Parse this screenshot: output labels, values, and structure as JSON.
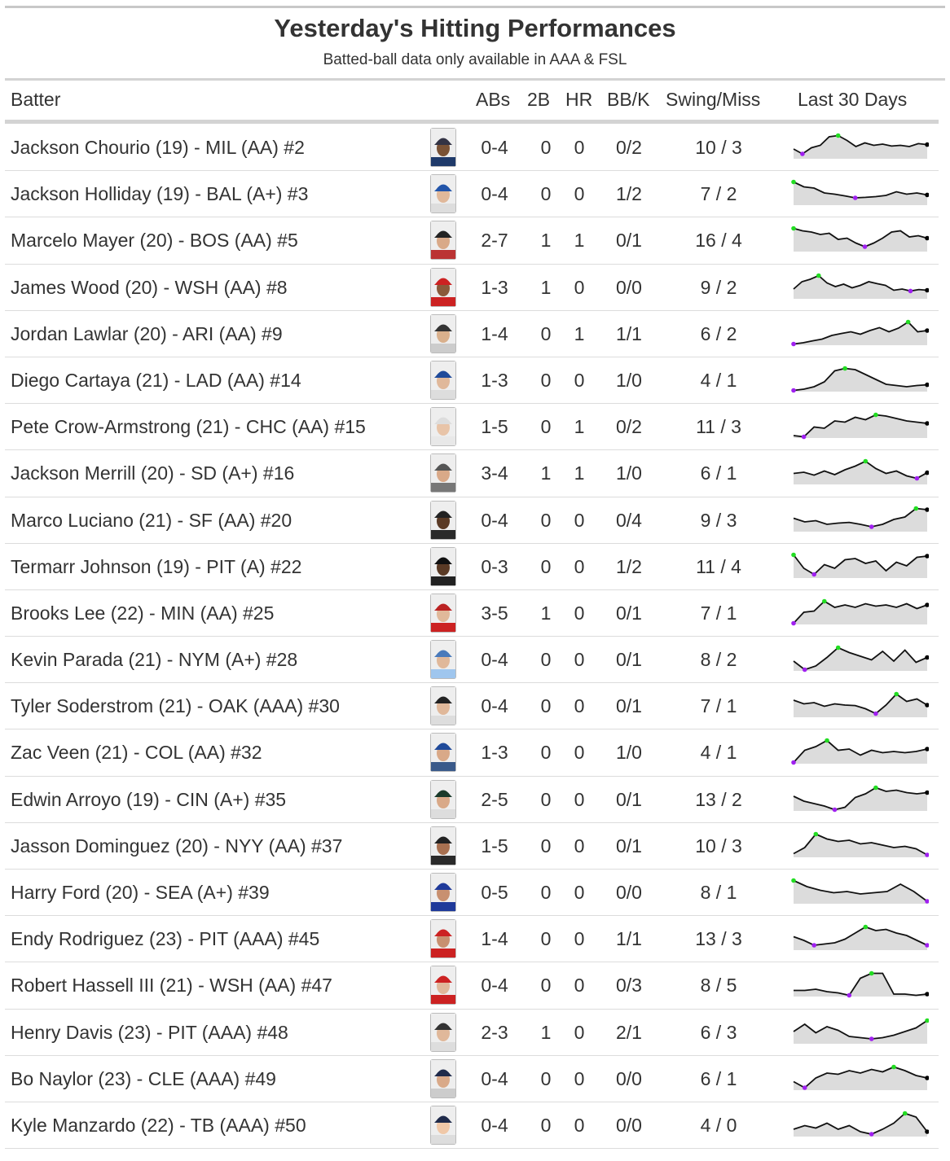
{
  "title": "Yesterday's Hitting Performances",
  "subtitle": "Batted-ball data only available in AAA & FSL",
  "columns": {
    "batter": "Batter",
    "abs": "ABs",
    "doubles": "2B",
    "hr": "HR",
    "bbk": "BB/K",
    "swing_miss": "Swing/Miss",
    "last30": "Last 30 Days"
  },
  "colors": {
    "high_point": "#22dd22",
    "low_point": "#a020f0",
    "last_point": "#000000",
    "area": "#dcdcdc",
    "line": "#111111"
  },
  "chart_data": {
    "type": "table",
    "rows": [
      {
        "batter": "Jackson Chourio (19) - MIL (AA) #2",
        "abs": "0-4",
        "doubles": "0",
        "hr": "0",
        "bbk": "0/2",
        "swing_miss": "10 / 3",
        "helmet": "#333344",
        "jersey": "#1f3a6a",
        "skin": "#7a5235",
        "spark": [
          0.4,
          0.2,
          0.45,
          0.55,
          0.9,
          0.95,
          0.75,
          0.5,
          0.65,
          0.55,
          0.6,
          0.52,
          0.55,
          0.5,
          0.62,
          0.58
        ]
      },
      {
        "batter": "Jackson Holliday (19) - BAL (A+) #3",
        "abs": "0-4",
        "doubles": "0",
        "hr": "0",
        "bbk": "1/2",
        "swing_miss": "7 / 2",
        "helmet": "#2255aa",
        "jersey": "#dddddd",
        "skin": "#e0b89a",
        "spark": [
          0.95,
          0.75,
          0.7,
          0.5,
          0.45,
          0.38,
          0.3,
          0.32,
          0.35,
          0.4,
          0.55,
          0.45,
          0.5,
          0.42
        ]
      },
      {
        "batter": "Marcelo Mayer (20) - BOS (AA) #5",
        "abs": "2-7",
        "doubles": "1",
        "hr": "1",
        "bbk": "0/1",
        "swing_miss": "16 / 4",
        "helmet": "#222222",
        "jersey": "#bb3333",
        "skin": "#d9a988",
        "spark": [
          0.95,
          0.85,
          0.8,
          0.7,
          0.75,
          0.5,
          0.55,
          0.35,
          0.2,
          0.35,
          0.55,
          0.8,
          0.85,
          0.6,
          0.65,
          0.55
        ]
      },
      {
        "batter": "James Wood (20) - WSH (AA) #8",
        "abs": "1-3",
        "doubles": "1",
        "hr": "0",
        "bbk": "0/0",
        "swing_miss": "9 / 2",
        "helmet": "#cc2222",
        "jersey": "#cc2222",
        "skin": "#8a5a3a",
        "spark": [
          0.4,
          0.7,
          0.8,
          0.95,
          0.65,
          0.5,
          0.6,
          0.45,
          0.55,
          0.7,
          0.62,
          0.55,
          0.35,
          0.4,
          0.32,
          0.38,
          0.35
        ]
      },
      {
        "batter": "Jordan Lawlar (20) - ARI (AA) #9",
        "abs": "1-4",
        "doubles": "0",
        "hr": "1",
        "bbk": "1/1",
        "swing_miss": "6 / 2",
        "helmet": "#333333",
        "jersey": "#cccccc",
        "skin": "#d9b08c",
        "spark": [
          0.05,
          0.1,
          0.18,
          0.25,
          0.4,
          0.48,
          0.55,
          0.45,
          0.6,
          0.72,
          0.55,
          0.7,
          0.95,
          0.55,
          0.6
        ]
      },
      {
        "batter": "Diego Cartaya (21) - LAD (AA) #14",
        "abs": "1-3",
        "doubles": "0",
        "hr": "0",
        "bbk": "1/0",
        "swing_miss": "4 / 1",
        "helmet": "#1f4a9a",
        "jersey": "#dddddd",
        "skin": "#e0b89a",
        "spark": [
          0.05,
          0.1,
          0.2,
          0.4,
          0.85,
          0.95,
          0.9,
          0.7,
          0.5,
          0.3,
          0.25,
          0.2,
          0.25,
          0.28
        ]
      },
      {
        "batter": "Pete Crow-Armstrong (21) - CHC (AA) #15",
        "abs": "1-5",
        "doubles": "0",
        "hr": "1",
        "bbk": "0/2",
        "swing_miss": "11 / 3",
        "helmet": "#dddddd",
        "jersey": "#e8e8e8",
        "skin": "#e8c4a8",
        "spark": [
          0.1,
          0.05,
          0.45,
          0.4,
          0.7,
          0.65,
          0.85,
          0.75,
          0.95,
          0.9,
          0.8,
          0.7,
          0.65,
          0.6
        ]
      },
      {
        "batter": "Jackson Merrill (20) - SD (A+) #16",
        "abs": "3-4",
        "doubles": "1",
        "hr": "1",
        "bbk": "1/0",
        "swing_miss": "6 / 1",
        "helmet": "#555555",
        "jersey": "#777777",
        "skin": "#d9a988",
        "spark": [
          0.45,
          0.5,
          0.38,
          0.55,
          0.4,
          0.6,
          0.75,
          0.95,
          0.65,
          0.45,
          0.55,
          0.35,
          0.25,
          0.48
        ]
      },
      {
        "batter": "Marco Luciano (21) - SF (AA) #20",
        "abs": "0-4",
        "doubles": "0",
        "hr": "0",
        "bbk": "0/4",
        "swing_miss": "9 / 3",
        "helmet": "#222222",
        "jersey": "#2a2a2a",
        "skin": "#5a3a25",
        "spark": [
          0.55,
          0.4,
          0.45,
          0.3,
          0.35,
          0.38,
          0.3,
          0.2,
          0.3,
          0.5,
          0.6,
          0.95,
          0.9
        ]
      },
      {
        "batter": "Termarr Johnson (19) - PIT (A) #22",
        "abs": "0-3",
        "doubles": "0",
        "hr": "0",
        "bbk": "1/2",
        "swing_miss": "11 / 4",
        "helmet": "#111111",
        "jersey": "#222222",
        "skin": "#5a3a25",
        "spark": [
          0.95,
          0.4,
          0.15,
          0.55,
          0.4,
          0.75,
          0.8,
          0.6,
          0.7,
          0.3,
          0.65,
          0.5,
          0.85,
          0.9
        ]
      },
      {
        "batter": "Brooks Lee (22) - MIN (AA) #25",
        "abs": "3-5",
        "doubles": "1",
        "hr": "0",
        "bbk": "0/1",
        "swing_miss": "7 / 1",
        "helmet": "#bb2222",
        "jersey": "#cc2222",
        "skin": "#e0b89a",
        "spark": [
          0.05,
          0.5,
          0.55,
          0.95,
          0.7,
          0.8,
          0.7,
          0.85,
          0.75,
          0.8,
          0.7,
          0.85,
          0.65,
          0.8
        ]
      },
      {
        "batter": "Kevin Parada (21) - NYM (A+) #28",
        "abs": "0-4",
        "doubles": "0",
        "hr": "0",
        "bbk": "0/1",
        "swing_miss": "8 / 2",
        "helmet": "#4a7abb",
        "jersey": "#9fc6ee",
        "skin": "#e0b89a",
        "spark": [
          0.4,
          0.05,
          0.2,
          0.55,
          0.95,
          0.75,
          0.6,
          0.45,
          0.8,
          0.4,
          0.85,
          0.35,
          0.55
        ]
      },
      {
        "batter": "Tyler Soderstrom (21) - OAK (AAA) #30",
        "abs": "0-4",
        "doubles": "0",
        "hr": "0",
        "bbk": "0/1",
        "swing_miss": "7 / 1",
        "helmet": "#222222",
        "jersey": "#dddddd",
        "skin": "#e0b89a",
        "spark": [
          0.7,
          0.55,
          0.6,
          0.45,
          0.55,
          0.5,
          0.48,
          0.35,
          0.15,
          0.5,
          0.95,
          0.65,
          0.75,
          0.5
        ]
      },
      {
        "batter": "Zac Veen (21) - COL (AA) #32",
        "abs": "1-3",
        "doubles": "0",
        "hr": "0",
        "bbk": "1/0",
        "swing_miss": "4 / 1",
        "helmet": "#1f4a9a",
        "jersey": "#3a5a8a",
        "skin": "#d9a988",
        "spark": [
          0.05,
          0.55,
          0.7,
          0.95,
          0.55,
          0.6,
          0.35,
          0.55,
          0.45,
          0.5,
          0.45,
          0.5,
          0.6
        ]
      },
      {
        "batter": "Edwin Arroyo (19) - CIN (A+) #35",
        "abs": "2-5",
        "doubles": "0",
        "hr": "0",
        "bbk": "0/1",
        "swing_miss": "13 / 2",
        "helmet": "#1a3a2a",
        "jersey": "#dddddd",
        "skin": "#d9a988",
        "spark": [
          0.6,
          0.4,
          0.3,
          0.2,
          0.05,
          0.15,
          0.55,
          0.7,
          0.95,
          0.8,
          0.85,
          0.75,
          0.7,
          0.75
        ]
      },
      {
        "batter": "Jasson Dominguez (20) - NYY (AA) #37",
        "abs": "1-5",
        "doubles": "0",
        "hr": "0",
        "bbk": "0/1",
        "swing_miss": "10 / 3",
        "helmet": "#222222",
        "jersey": "#2a2a2a",
        "skin": "#a87050",
        "spark": [
          0.15,
          0.4,
          0.95,
          0.75,
          0.65,
          0.7,
          0.55,
          0.6,
          0.5,
          0.4,
          0.45,
          0.35,
          0.1
        ]
      },
      {
        "batter": "Harry Ford (20) - SEA (A+) #39",
        "abs": "0-5",
        "doubles": "0",
        "hr": "0",
        "bbk": "0/0",
        "swing_miss": "8 / 1",
        "helmet": "#1f3a9a",
        "jersey": "#1f3a9a",
        "skin": "#c89070",
        "spark": [
          0.95,
          0.7,
          0.55,
          0.45,
          0.5,
          0.4,
          0.45,
          0.5,
          0.8,
          0.5,
          0.1
        ]
      },
      {
        "batter": "Endy Rodriguez (23) - PIT (AAA) #45",
        "abs": "1-4",
        "doubles": "0",
        "hr": "0",
        "bbk": "1/1",
        "swing_miss": "13 / 3",
        "helmet": "#cc2222",
        "jersey": "#cc2222",
        "skin": "#c89070",
        "spark": [
          0.55,
          0.4,
          0.2,
          0.25,
          0.3,
          0.45,
          0.7,
          0.95,
          0.8,
          0.85,
          0.7,
          0.6,
          0.4,
          0.2
        ]
      },
      {
        "batter": "Robert Hassell III (21) - WSH (AA) #47",
        "abs": "0-4",
        "doubles": "0",
        "hr": "0",
        "bbk": "0/3",
        "swing_miss": "8 / 5",
        "helmet": "#cc2222",
        "jersey": "#cc2222",
        "skin": "#e0b89a",
        "spark": [
          0.25,
          0.25,
          0.3,
          0.2,
          0.15,
          0.05,
          0.75,
          0.95,
          0.95,
          0.1,
          0.1,
          0.05,
          0.1
        ]
      },
      {
        "batter": "Henry Davis (23) - PIT (AAA) #48",
        "abs": "2-3",
        "doubles": "1",
        "hr": "0",
        "bbk": "2/1",
        "swing_miss": "6 / 3",
        "helmet": "#333333",
        "jersey": "#dddddd",
        "skin": "#e0b89a",
        "spark": [
          0.5,
          0.8,
          0.45,
          0.7,
          0.55,
          0.3,
          0.25,
          0.2,
          0.25,
          0.35,
          0.5,
          0.65,
          0.95
        ]
      },
      {
        "batter": "Bo Naylor (23) - CLE (AAA) #49",
        "abs": "0-4",
        "doubles": "0",
        "hr": "0",
        "bbk": "0/0",
        "swing_miss": "6 / 1",
        "helmet": "#1f2a4a",
        "jersey": "#cccccc",
        "skin": "#d9a988",
        "spark": [
          0.35,
          0.1,
          0.5,
          0.7,
          0.65,
          0.8,
          0.7,
          0.85,
          0.75,
          0.95,
          0.8,
          0.6,
          0.5
        ]
      },
      {
        "batter": "Kyle Manzardo (22) - TB (AAA) #50",
        "abs": "0-4",
        "doubles": "0",
        "hr": "0",
        "bbk": "0/0",
        "swing_miss": "4 / 0",
        "helmet": "#1f2a4a",
        "jersey": "#dddddd",
        "skin": "#f0c8a8",
        "spark": [
          0.3,
          0.45,
          0.35,
          0.55,
          0.3,
          0.45,
          0.2,
          0.1,
          0.3,
          0.55,
          0.95,
          0.8,
          0.2
        ]
      }
    ]
  }
}
